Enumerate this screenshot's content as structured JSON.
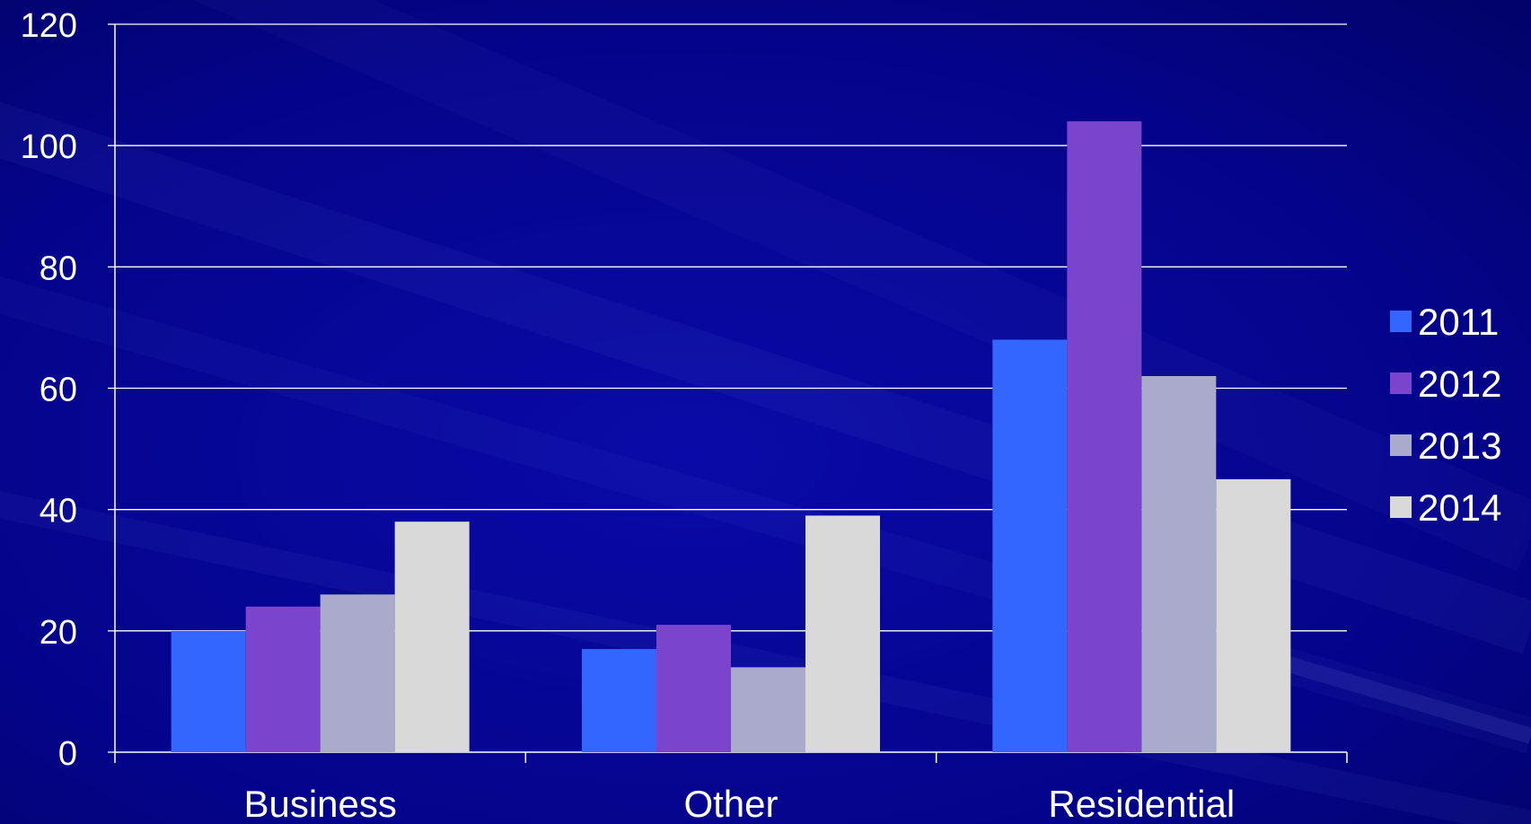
{
  "chart_data": {
    "type": "bar",
    "title": "",
    "xlabel": "",
    "ylabel": "",
    "categories": [
      "Business",
      "Other",
      "Residential"
    ],
    "series": [
      {
        "name": "2011",
        "values": [
          20,
          17,
          68
        ],
        "color": "#3366ff"
      },
      {
        "name": "2012",
        "values": [
          24,
          21,
          104
        ],
        "color": "#7a44cc"
      },
      {
        "name": "2013",
        "values": [
          26,
          14,
          62
        ],
        "color": "#aaaacc"
      },
      {
        "name": "2014",
        "values": [
          38,
          39,
          45
        ],
        "color": "#d9d9d9"
      }
    ],
    "ylim": [
      0,
      120
    ],
    "yticks": [
      "0",
      "20",
      "40",
      "60",
      "80",
      "100",
      "120"
    ],
    "grid": true,
    "legend_position": "right",
    "colors": {
      "background": "#03037a",
      "gridline": "#ffffff",
      "text": "#ffffff"
    }
  }
}
